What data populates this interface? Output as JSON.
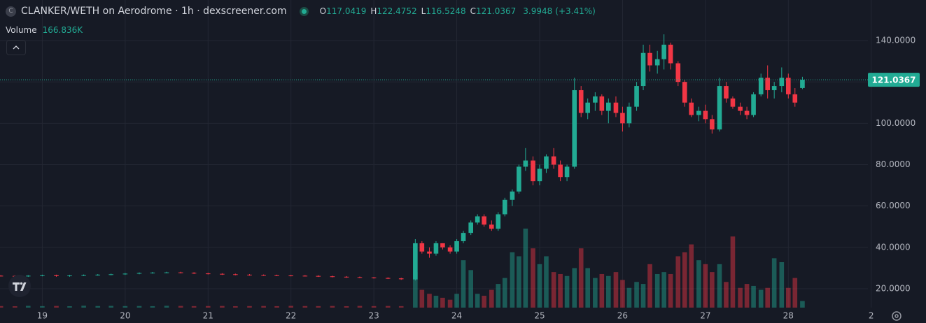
{
  "chart_data": {
    "type": "candlestick",
    "symbol_icon": "C",
    "title": "CLANKER/WETH on Aerodrome · 1h · dexscreener.com",
    "open_key": "O",
    "high_key": "H",
    "low_key": "L",
    "close_key": "C",
    "change": 3.9948,
    "change_label": "(+3.41%)",
    "volume_title": "Volume",
    "last_volume_label": "166.836K",
    "up_color": "#22ab94",
    "down_color": "#f23645",
    "grid": true,
    "last_price_line": true,
    "x": [
      18.5,
      18.67,
      18.83,
      19.0,
      19.17,
      19.33,
      19.5,
      19.67,
      19.83,
      20.0,
      20.17,
      20.33,
      20.5,
      20.67,
      20.83,
      21.0,
      21.17,
      21.33,
      21.5,
      21.67,
      21.83,
      22.0,
      22.17,
      22.33,
      22.5,
      22.67,
      22.83,
      23.0,
      23.17,
      23.33,
      23.5,
      23.58,
      23.67,
      23.75,
      23.83,
      23.92,
      24.0,
      24.08,
      24.17,
      24.25,
      24.33,
      24.42,
      24.5,
      24.58,
      24.67,
      24.75,
      24.83,
      24.92,
      25.0,
      25.08,
      25.17,
      25.25,
      25.33,
      25.42,
      25.5,
      25.58,
      25.67,
      25.75,
      25.83,
      25.92,
      26.0,
      26.08,
      26.17,
      26.25,
      26.33,
      26.42,
      26.5,
      26.58,
      26.67,
      26.75,
      26.83,
      26.92,
      27.0,
      27.08,
      27.17,
      27.25,
      27.33,
      27.42,
      27.5,
      27.58,
      27.67,
      27.75,
      27.83,
      27.92,
      28.0,
      28.08,
      28.17
    ],
    "open": [
      26.3,
      26.2,
      26.0,
      26.3,
      26.5,
      26.1,
      26.4,
      26.6,
      26.8,
      27.0,
      27.3,
      27.6,
      27.8,
      27.9,
      27.7,
      27.4,
      27.2,
      27.0,
      26.8,
      26.6,
      26.5,
      26.4,
      26.3,
      26.2,
      26.0,
      25.8,
      25.6,
      25.4,
      25.2,
      25.0,
      24.5,
      42,
      38,
      37,
      42,
      40,
      38,
      43,
      47,
      52,
      55,
      51,
      49,
      56,
      63,
      67,
      79,
      82,
      72,
      78,
      84,
      80,
      74,
      79,
      116,
      105,
      110,
      113,
      106,
      110,
      105,
      100,
      108,
      118,
      134,
      128,
      131,
      138,
      129,
      120,
      110,
      104,
      106,
      102,
      97,
      118,
      112,
      108,
      106,
      104,
      114,
      122,
      116,
      118,
      122,
      114,
      117.0419
    ],
    "high": [
      26.6,
      26.5,
      26.6,
      26.8,
      26.8,
      26.7,
      26.9,
      27.1,
      27.3,
      27.6,
      27.9,
      28.1,
      28.2,
      28.2,
      28.0,
      27.7,
      27.5,
      27.3,
      27.1,
      26.9,
      26.8,
      26.7,
      26.6,
      26.5,
      26.3,
      26.1,
      25.9,
      25.7,
      25.5,
      25.3,
      44,
      43,
      40,
      43,
      42,
      41,
      44,
      48,
      53,
      56,
      56,
      53,
      57,
      64,
      68,
      80,
      88,
      84,
      80,
      85,
      88,
      82,
      80,
      122,
      118,
      112,
      115,
      114,
      112,
      113,
      108,
      110,
      120,
      138,
      138,
      135,
      143,
      139,
      130,
      121,
      112,
      108,
      109,
      104,
      122,
      120,
      113,
      110,
      108,
      115,
      124,
      128,
      120,
      127,
      124,
      117,
      122.4752
    ],
    "low": [
      25.9,
      25.7,
      25.7,
      26.0,
      25.8,
      25.8,
      26.1,
      26.3,
      26.5,
      26.7,
      27.0,
      27.3,
      27.5,
      27.4,
      27.1,
      26.9,
      26.7,
      26.5,
      26.3,
      26.2,
      26.1,
      26.0,
      25.9,
      25.7,
      25.5,
      25.3,
      25.1,
      24.9,
      24.7,
      24.3,
      24,
      37,
      35,
      36,
      39,
      37,
      37,
      42,
      46,
      51,
      50,
      48,
      48,
      55,
      60,
      66,
      77,
      70,
      70,
      76,
      78,
      72,
      72,
      78,
      103,
      102,
      106,
      104,
      100,
      103,
      96,
      98,
      106,
      116,
      125,
      124,
      126,
      126,
      118,
      108,
      103,
      101,
      100,
      95,
      96,
      110,
      107,
      104,
      102,
      103,
      113,
      112,
      112,
      115,
      112,
      108,
      116.5248
    ],
    "close": [
      26.2,
      26.0,
      26.3,
      26.5,
      26.1,
      26.4,
      26.6,
      26.8,
      27.0,
      27.3,
      27.6,
      27.8,
      27.9,
      27.7,
      27.4,
      27.2,
      27.0,
      26.8,
      26.6,
      26.5,
      26.4,
      26.3,
      26.2,
      26.0,
      25.8,
      25.6,
      25.4,
      25.2,
      25.0,
      24.6,
      42,
      38,
      37,
      42,
      40,
      38,
      43,
      47,
      52,
      55,
      51,
      49,
      56,
      63,
      67,
      79,
      82,
      72,
      78,
      84,
      80,
      74,
      79,
      116,
      105,
      110,
      113,
      106,
      110,
      105,
      100,
      108,
      118,
      134,
      128,
      131,
      138,
      129,
      120,
      110,
      104,
      106,
      102,
      97,
      118,
      112,
      108,
      106,
      104,
      114,
      122,
      116,
      118,
      122,
      114,
      110,
      121.0367
    ],
    "volume": [
      40000,
      35000,
      45000,
      38000,
      42000,
      36000,
      48000,
      40000,
      44000,
      39000,
      41000,
      37000,
      46000,
      43000,
      38000,
      40000,
      42000,
      36000,
      39000,
      41000,
      37000,
      44000,
      40000,
      38000,
      42000,
      36000,
      43000,
      39000,
      41000,
      38000,
      900000,
      450000,
      350000,
      300000,
      250000,
      200000,
      350000,
      1200000,
      950000,
      350000,
      300000,
      450000,
      600000,
      750000,
      1400000,
      1300000,
      2000000,
      1500000,
      1100000,
      1300000,
      900000,
      850000,
      800000,
      1000000,
      1500000,
      1000000,
      750000,
      850000,
      800000,
      900000,
      700000,
      500000,
      650000,
      600000,
      1100000,
      850000,
      900000,
      850000,
      1300000,
      1400000,
      1600000,
      1200000,
      1100000,
      900000,
      1100000,
      650000,
      1800000,
      500000,
      600000,
      550000,
      450000,
      500000,
      1250000,
      1150000,
      500000,
      750000,
      166836
    ],
    "xlim": [
      18.49,
      28.96
    ],
    "xticks": [
      19,
      20,
      21,
      22,
      23,
      24,
      25,
      26,
      27,
      28,
      {
        "value": 29,
        "label": "2"
      }
    ],
    "ylim": [
      10.87,
      159.6
    ],
    "yticks": [
      {
        "value": 20,
        "label": "20.0000"
      },
      {
        "value": 40,
        "label": "40.0000"
      },
      {
        "value": 60,
        "label": "60.0000"
      },
      {
        "value": 80,
        "label": "80.0000"
      },
      {
        "value": 100,
        "label": "100.0000"
      },
      {
        "value": 120,
        "label": "120.0000"
      },
      {
        "value": 140,
        "label": "140.0000"
      }
    ],
    "y2lim": [
      0,
      2300000
    ]
  }
}
